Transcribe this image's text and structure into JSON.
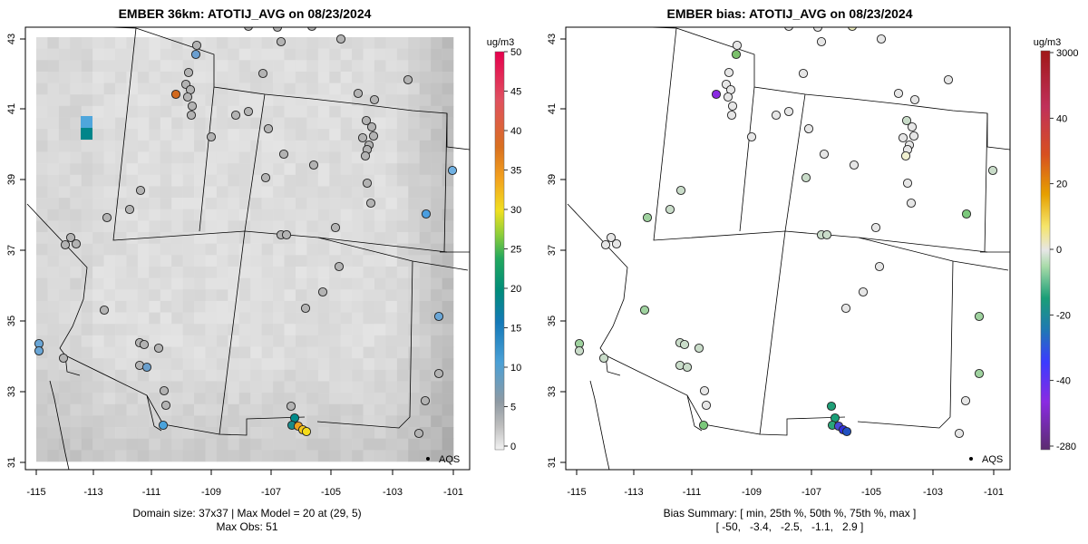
{
  "left_panel": {
    "title": "EMBER 36km: ATOTIJ_AVG on 08/23/2024",
    "colorbar_unit": "ug/m3",
    "colorbar_ticks": [
      "0",
      "5",
      "10",
      "15",
      "20",
      "25",
      "30",
      "35",
      "40",
      "45",
      "50"
    ],
    "legend_label": "AQS",
    "footer_line1": "Domain size: 37x37 | Max Model = 20 at (29, 5)",
    "footer_line2": "Max Obs: 51"
  },
  "right_panel": {
    "title": "EMBER bias: ATOTIJ_AVG on 08/23/2024",
    "colorbar_unit": "ug/m3",
    "colorbar_ticks": [
      "-280",
      "-40",
      "-20",
      "0",
      "20",
      "40",
      "3000"
    ],
    "legend_label": "AQS",
    "footer_line1": "Bias Summary: [ min, 25th %, 50th %, 75th %, max ]",
    "footer_line2": "[ -50,   -3.4,   -2.5,   -1.1,   2.9 ]"
  },
  "axes": {
    "lon_ticks": [
      "-115",
      "-113",
      "-111",
      "-109",
      "-107",
      "-105",
      "-103",
      "-101"
    ],
    "lat_ticks": [
      "31",
      "33",
      "35",
      "37",
      "39",
      "41",
      "43"
    ]
  },
  "colors": {
    "obs_palette": [
      "#d9d9d9",
      "#9fa9b1",
      "#4fa2d8",
      "#1479b8",
      "#008080",
      "#1aa66b",
      "#8cce3a",
      "#f5e21a",
      "#f3a21e",
      "#d96a1a",
      "#e74a50",
      "#ec3b63",
      "#e6004d"
    ],
    "bias_palette": [
      "#5b2c6f",
      "#8a2be2",
      "#3b3bff",
      "#1f78b4",
      "#1a9e77",
      "#9ed69e",
      "#e0e0e0",
      "#f0e442",
      "#e69f00",
      "#d7301f",
      "#b22222"
    ]
  }
}
